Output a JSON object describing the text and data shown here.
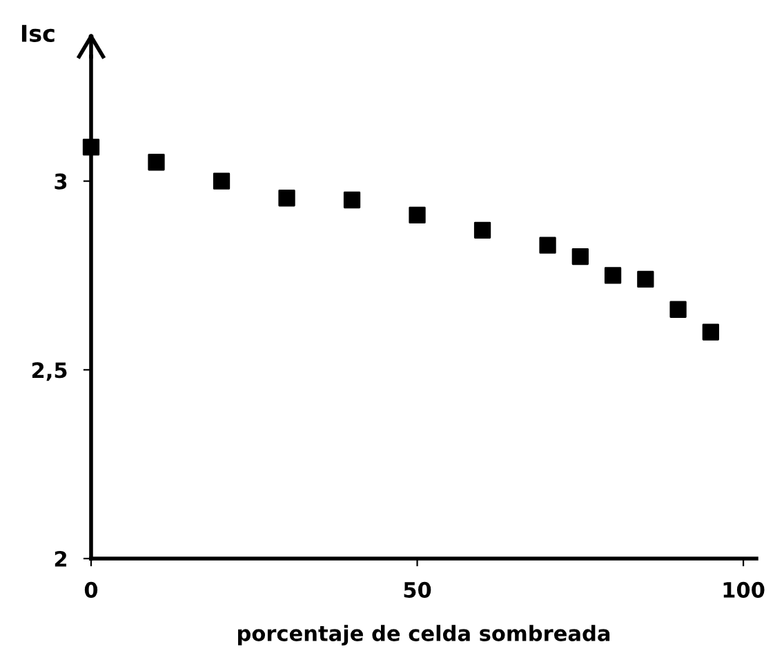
{
  "chart_data": {
    "type": "scatter",
    "xlabel": "porcentaje de celda sombreada",
    "ylabel": "Isc",
    "x": [
      0,
      10,
      20,
      30,
      40,
      50,
      60,
      70,
      75,
      80,
      85,
      90,
      95
    ],
    "series": [
      {
        "color": "#000000",
        "values": [
          3.09,
          3.05,
          3.0,
          2.955,
          2.95,
          2.91,
          2.87,
          2.83,
          2.8,
          2.75,
          2.74,
          2.66,
          2.6
        ]
      }
    ],
    "marker": "square",
    "xlim": [
      0,
      102
    ],
    "ylim": [
      2,
      3.33
    ],
    "xticks": [
      0,
      50,
      100
    ],
    "yticks": [
      2,
      {
        "value": 2.5,
        "label": "2,5"
      },
      3
    ],
    "grid": false,
    "legend": false
  }
}
